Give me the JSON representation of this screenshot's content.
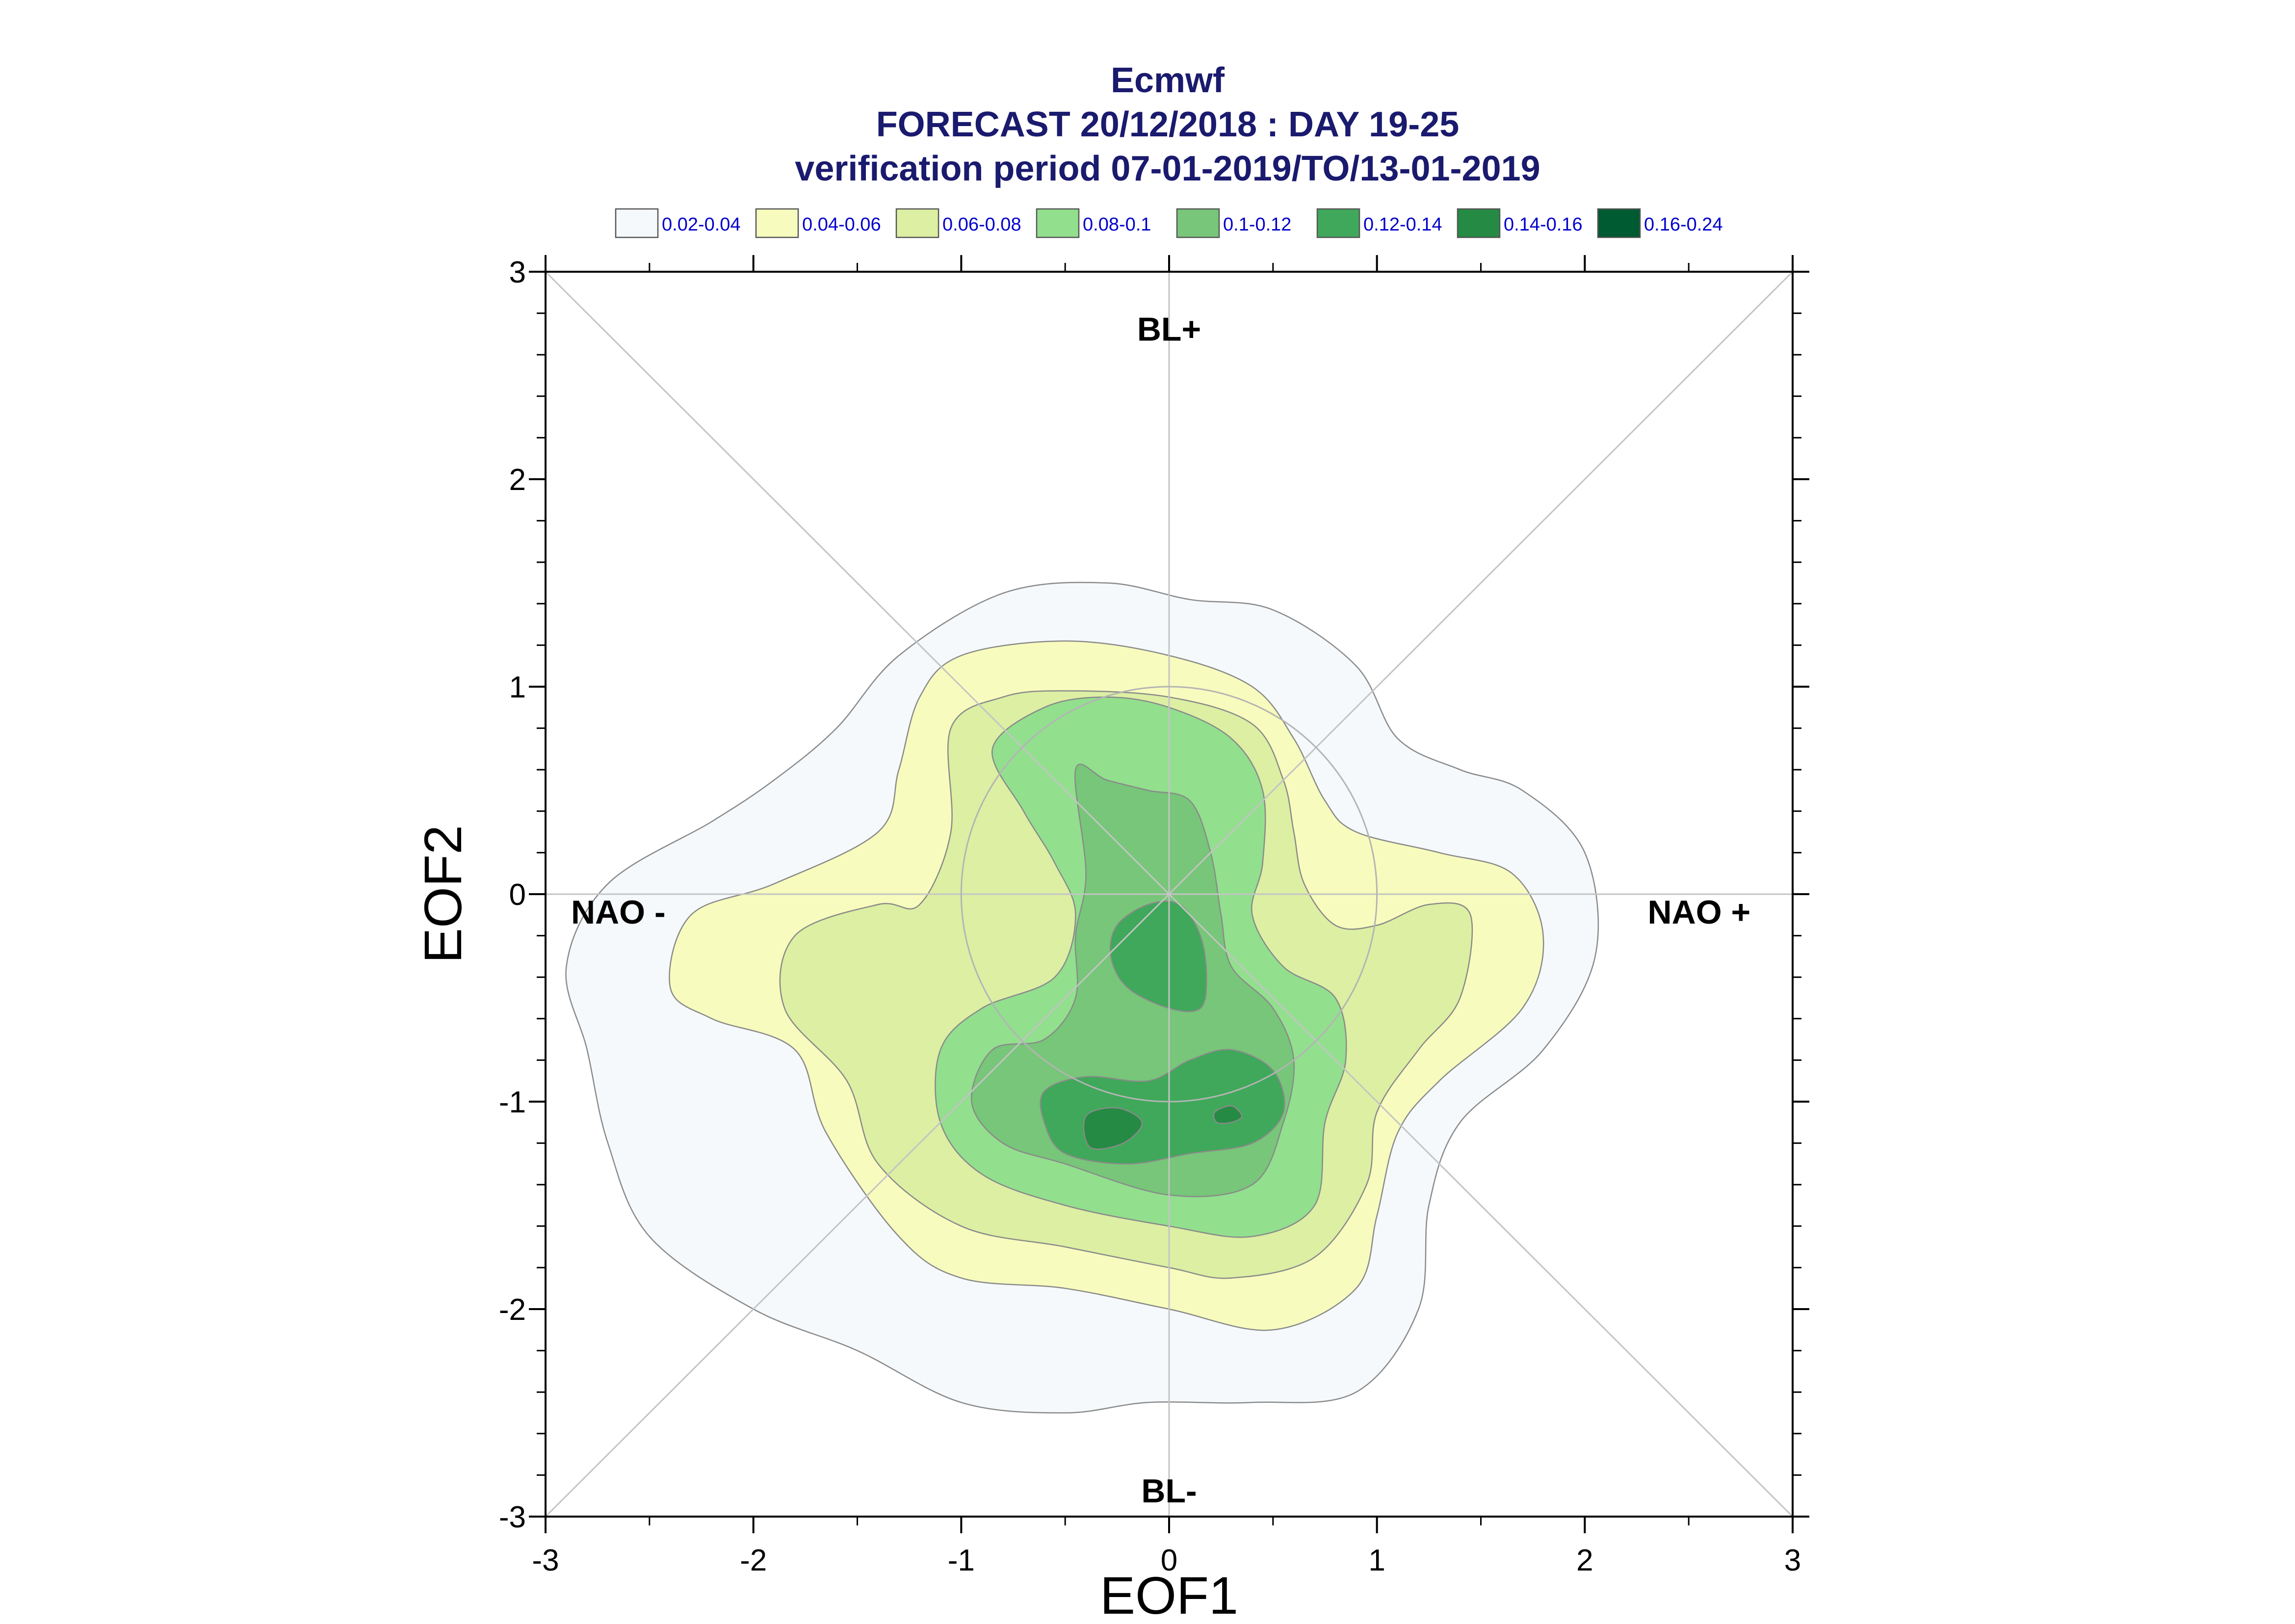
{
  "chart_data": {
    "type": "contour",
    "title": "Ecmwf",
    "subtitle": "FORECAST 20/12/2018 : DAY 19-25",
    "subtitle2": "verification period 07-01-2019/TO/13-01-2019",
    "xlabel": "EOF1",
    "ylabel": "EOF2",
    "xlim": [
      -3,
      3
    ],
    "ylim": [
      -3,
      3
    ],
    "xticks": [
      -3,
      -2,
      -1,
      0,
      1,
      2,
      3
    ],
    "yticks": [
      -3,
      -2,
      -1,
      0,
      1,
      2,
      3
    ],
    "xtick_labels": [
      "-3",
      "-2",
      "-1",
      "0",
      "1",
      "2",
      "3"
    ],
    "ytick_labels": [
      "-3",
      "-2",
      "-1",
      "0",
      "1",
      "2",
      "3"
    ],
    "regime_labels": [
      {
        "text": "BL+",
        "x": 0,
        "y": 2.72
      },
      {
        "text": "BL-",
        "x": 0,
        "y": -2.88
      },
      {
        "text": "NAO -",
        "x": -2.65,
        "y": -0.09
      },
      {
        "text": "NAO +",
        "x": 2.55,
        "y": -0.09
      }
    ],
    "legend_placement": "top",
    "legend": [
      {
        "label": "0.02-0.04",
        "color": "#f5f9fc"
      },
      {
        "label": "0.04-0.06",
        "color": "#f7fbbd"
      },
      {
        "label": "0.06-0.08",
        "color": "#dcefa3"
      },
      {
        "label": "0.08-0.1",
        "color": "#92df8e"
      },
      {
        "label": "0.1-0.12",
        "color": "#77c679"
      },
      {
        "label": "0.12-0.14",
        "color": "#3fa85a"
      },
      {
        "label": "0.14-0.16",
        "color": "#258a43"
      },
      {
        "label": "0.16-0.24",
        "color": "#005a32"
      }
    ],
    "contours": [
      {
        "level": "0.02-0.04",
        "color": "#f5f9fc",
        "points": [
          [
            -0.8,
            1.45
          ],
          [
            -0.3,
            1.5
          ],
          [
            0.1,
            1.42
          ],
          [
            0.5,
            1.37
          ],
          [
            0.9,
            1.1
          ],
          [
            1.1,
            0.75
          ],
          [
            1.4,
            0.6
          ],
          [
            1.7,
            0.5
          ],
          [
            2.0,
            0.2
          ],
          [
            2.05,
            -0.3
          ],
          [
            1.8,
            -0.75
          ],
          [
            1.4,
            -1.1
          ],
          [
            1.25,
            -1.5
          ],
          [
            1.2,
            -2.0
          ],
          [
            0.9,
            -2.4
          ],
          [
            0.4,
            -2.45
          ],
          [
            -0.1,
            -2.45
          ],
          [
            -0.5,
            -2.5
          ],
          [
            -1.0,
            -2.45
          ],
          [
            -1.5,
            -2.2
          ],
          [
            -2.0,
            -2.0
          ],
          [
            -2.5,
            -1.65
          ],
          [
            -2.7,
            -1.2
          ],
          [
            -2.8,
            -0.75
          ],
          [
            -2.9,
            -0.35
          ],
          [
            -2.7,
            0.05
          ],
          [
            -2.2,
            0.35
          ],
          [
            -1.9,
            0.55
          ],
          [
            -1.6,
            0.8
          ],
          [
            -1.3,
            1.15
          ]
        ]
      },
      {
        "level": "0.04-0.06",
        "color": "#f7fbbd",
        "points": [
          [
            -1.2,
            0.95
          ],
          [
            -1.0,
            1.15
          ],
          [
            -0.5,
            1.22
          ],
          [
            0.0,
            1.15
          ],
          [
            0.4,
            1.0
          ],
          [
            0.6,
            0.75
          ],
          [
            0.75,
            0.45
          ],
          [
            0.9,
            0.3
          ],
          [
            1.3,
            0.2
          ],
          [
            1.65,
            0.1
          ],
          [
            1.8,
            -0.2
          ],
          [
            1.7,
            -0.55
          ],
          [
            1.3,
            -0.9
          ],
          [
            1.1,
            -1.15
          ],
          [
            1.0,
            -1.55
          ],
          [
            0.9,
            -1.9
          ],
          [
            0.5,
            -2.1
          ],
          [
            0.0,
            -2.0
          ],
          [
            -0.5,
            -1.9
          ],
          [
            -1.0,
            -1.85
          ],
          [
            -1.3,
            -1.65
          ],
          [
            -1.65,
            -1.15
          ],
          [
            -1.8,
            -0.75
          ],
          [
            -2.2,
            -0.6
          ],
          [
            -2.4,
            -0.45
          ],
          [
            -2.3,
            -0.1
          ],
          [
            -1.9,
            0.05
          ],
          [
            -1.4,
            0.3
          ],
          [
            -1.3,
            0.6
          ]
        ]
      },
      {
        "level": "0.06-0.08",
        "color": "#dcefa3",
        "points": [
          [
            -1.05,
            0.8
          ],
          [
            -0.8,
            0.95
          ],
          [
            -0.5,
            0.98
          ],
          [
            0.0,
            0.95
          ],
          [
            0.4,
            0.82
          ],
          [
            0.55,
            0.55
          ],
          [
            0.6,
            0.3
          ],
          [
            0.65,
            0.05
          ],
          [
            0.8,
            -0.15
          ],
          [
            1.0,
            -0.15
          ],
          [
            1.25,
            -0.05
          ],
          [
            1.45,
            -0.1
          ],
          [
            1.4,
            -0.5
          ],
          [
            1.2,
            -0.75
          ],
          [
            1.0,
            -1.05
          ],
          [
            0.95,
            -1.4
          ],
          [
            0.7,
            -1.75
          ],
          [
            0.3,
            -1.85
          ],
          [
            0.0,
            -1.8
          ],
          [
            -0.5,
            -1.7
          ],
          [
            -1.0,
            -1.6
          ],
          [
            -1.4,
            -1.3
          ],
          [
            -1.55,
            -0.9
          ],
          [
            -1.85,
            -0.55
          ],
          [
            -1.8,
            -0.2
          ],
          [
            -1.4,
            -0.05
          ],
          [
            -1.2,
            -0.05
          ],
          [
            -1.05,
            0.3
          ]
        ]
      },
      {
        "level": "0.08-0.1",
        "color": "#92df8e",
        "points": [
          [
            -0.85,
            0.7
          ],
          [
            -0.6,
            0.9
          ],
          [
            -0.3,
            0.95
          ],
          [
            0.0,
            0.9
          ],
          [
            0.3,
            0.75
          ],
          [
            0.45,
            0.5
          ],
          [
            0.45,
            0.15
          ],
          [
            0.4,
            -0.1
          ],
          [
            0.55,
            -0.35
          ],
          [
            0.8,
            -0.5
          ],
          [
            0.85,
            -0.8
          ],
          [
            0.75,
            -1.1
          ],
          [
            0.7,
            -1.5
          ],
          [
            0.4,
            -1.65
          ],
          [
            0.0,
            -1.6
          ],
          [
            -0.5,
            -1.5
          ],
          [
            -0.9,
            -1.35
          ],
          [
            -1.1,
            -1.1
          ],
          [
            -1.1,
            -0.75
          ],
          [
            -0.9,
            -0.55
          ],
          [
            -0.55,
            -0.4
          ],
          [
            -0.45,
            -0.1
          ],
          [
            -0.55,
            0.15
          ],
          [
            -0.7,
            0.4
          ]
        ]
      },
      {
        "level": "0.1-0.12",
        "color": "#77c679",
        "points": [
          [
            -0.45,
            0.6
          ],
          [
            -0.3,
            0.55
          ],
          [
            -0.1,
            0.5
          ],
          [
            0.1,
            0.45
          ],
          [
            0.2,
            0.2
          ],
          [
            0.25,
            -0.1
          ],
          [
            0.3,
            -0.35
          ],
          [
            0.5,
            -0.55
          ],
          [
            0.6,
            -0.8
          ],
          [
            0.55,
            -1.1
          ],
          [
            0.4,
            -1.4
          ],
          [
            0.0,
            -1.45
          ],
          [
            -0.5,
            -1.3
          ],
          [
            -0.8,
            -1.2
          ],
          [
            -0.95,
            -1.0
          ],
          [
            -0.85,
            -0.75
          ],
          [
            -0.6,
            -0.7
          ],
          [
            -0.45,
            -0.5
          ],
          [
            -0.45,
            -0.2
          ],
          [
            -0.4,
            0.1
          ]
        ]
      },
      {
        "level": "0.12-0.14",
        "color": "#3fa85a",
        "points": [
          [
            -0.25,
            -0.15
          ],
          [
            -0.1,
            -0.05
          ],
          [
            0.05,
            -0.05
          ],
          [
            0.15,
            -0.2
          ],
          [
            0.18,
            -0.4
          ],
          [
            0.15,
            -0.55
          ],
          [
            0.0,
            -0.55
          ],
          [
            -0.2,
            -0.45
          ],
          [
            -0.28,
            -0.3
          ]
        ]
      },
      {
        "level": "0.12-0.14",
        "color": "#3fa85a",
        "points": [
          [
            -0.6,
            -0.95
          ],
          [
            -0.4,
            -0.88
          ],
          [
            -0.1,
            -0.9
          ],
          [
            0.1,
            -0.8
          ],
          [
            0.3,
            -0.75
          ],
          [
            0.5,
            -0.85
          ],
          [
            0.55,
            -1.05
          ],
          [
            0.4,
            -1.2
          ],
          [
            0.1,
            -1.25
          ],
          [
            -0.2,
            -1.3
          ],
          [
            -0.5,
            -1.25
          ],
          [
            -0.6,
            -1.1
          ]
        ]
      },
      {
        "level": "0.14-0.16",
        "color": "#258a43",
        "points": [
          [
            -0.4,
            -1.07
          ],
          [
            -0.25,
            -1.03
          ],
          [
            -0.13,
            -1.1
          ],
          [
            -0.22,
            -1.2
          ],
          [
            -0.38,
            -1.22
          ]
        ]
      },
      {
        "level": "0.14-0.16",
        "color": "#258a43",
        "points": [
          [
            0.22,
            -1.05
          ],
          [
            0.3,
            -1.02
          ],
          [
            0.35,
            -1.07
          ],
          [
            0.3,
            -1.1
          ],
          [
            0.23,
            -1.1
          ]
        ]
      }
    ],
    "reference_lines": [
      "diagonal",
      "anti-diagonal",
      "x=0",
      "y=0"
    ],
    "reference_circles": [
      {
        "cx": 0,
        "cy": 0,
        "r": 1
      }
    ]
  }
}
